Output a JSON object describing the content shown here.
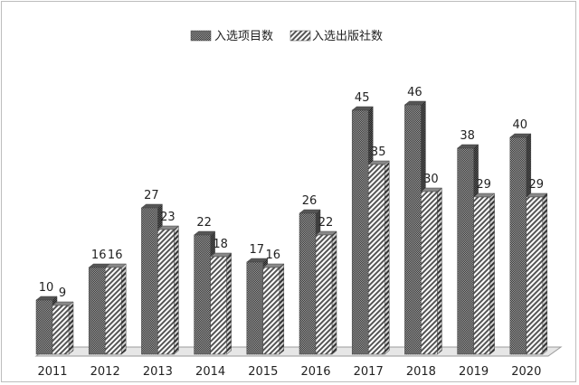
{
  "chart_data": {
    "type": "bar",
    "categories": [
      "2011",
      "2012",
      "2013",
      "2014",
      "2015",
      "2016",
      "2017",
      "2018",
      "2019",
      "2020"
    ],
    "series": [
      {
        "name": "入选项目数",
        "values": [
          10,
          16,
          27,
          22,
          17,
          26,
          45,
          46,
          38,
          40
        ]
      },
      {
        "name": "入选出版社数",
        "values": [
          9,
          16,
          23,
          18,
          16,
          22,
          35,
          30,
          29,
          29
        ]
      }
    ],
    "title": "",
    "xlabel": "",
    "ylabel": "",
    "ylim": [
      0,
      50
    ],
    "grid": false,
    "legend_position": "top-center",
    "bar_style": "3d",
    "colors": {
      "series1": "#4a4a4a",
      "series2": "#ffffff",
      "pattern": "#3a3a3a",
      "floor": "#e0e0e0"
    }
  }
}
